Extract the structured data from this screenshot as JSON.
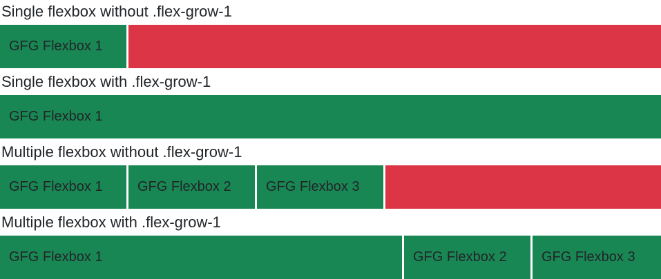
{
  "page": {
    "background": "#ffffff"
  },
  "colors": {
    "item_green": "#198754",
    "remaining_space_red": "#dc3545",
    "heading_text": "#212529",
    "item_text": "#212529",
    "item_gap_white": "#ffffff"
  },
  "sections": [
    {
      "heading": "Single flexbox without .flex-grow-1",
      "container_shows_red_remaining_space": true,
      "boxes": [
        {
          "label": "GFG Flexbox 1",
          "flex_grow": false
        }
      ]
    },
    {
      "heading": "Single flexbox with .flex-grow-1",
      "container_shows_red_remaining_space": false,
      "boxes": [
        {
          "label": "GFG Flexbox 1",
          "flex_grow": true
        }
      ]
    },
    {
      "heading": "Multiple flexbox without .flex-grow-1",
      "container_shows_red_remaining_space": true,
      "boxes": [
        {
          "label": "GFG Flexbox 1",
          "flex_grow": false
        },
        {
          "label": "GFG Flexbox 2",
          "flex_grow": false
        },
        {
          "label": "GFG Flexbox 3",
          "flex_grow": false
        }
      ]
    },
    {
      "heading": "Multiple flexbox with .flex-grow-1",
      "container_shows_red_remaining_space": false,
      "boxes": [
        {
          "label": "GFG Flexbox 1",
          "flex_grow": true
        },
        {
          "label": "GFG Flexbox 2",
          "flex_grow": false
        },
        {
          "label": "GFG Flexbox 3",
          "flex_grow": false
        }
      ]
    }
  ]
}
